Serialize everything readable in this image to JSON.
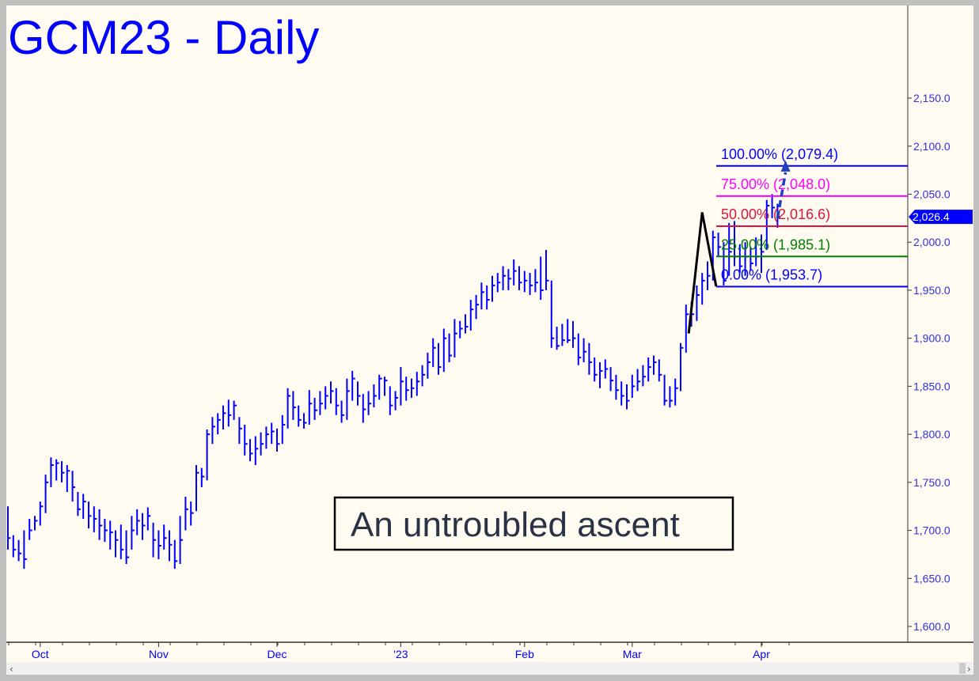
{
  "chart_data": {
    "type": "ohlc",
    "title": "GCM23 - Daily",
    "annotation": "An untroubled ascent",
    "ylim": [
      1580,
      2210
    ],
    "yticks": [
      "1,600.0",
      "1,650.0",
      "1,700.0",
      "1,750.0",
      "1,800.0",
      "1,850.0",
      "1,900.0",
      "1,950.0",
      "2,000.0",
      "2,050.0",
      "2,100.0",
      "2,150.0"
    ],
    "ytick_values": [
      1600,
      1650,
      1700,
      1750,
      1800,
      1850,
      1900,
      1950,
      2000,
      2050,
      2100,
      2150
    ],
    "xticks": [
      {
        "label": "Oct",
        "bar": 6
      },
      {
        "label": "Nov",
        "bar": 28
      },
      {
        "label": "Dec",
        "bar": 50
      },
      {
        "label": "'23",
        "bar": 73
      },
      {
        "label": "Feb",
        "bar": 96
      },
      {
        "label": "Mar",
        "bar": 116
      },
      {
        "label": "Apr",
        "bar": 140
      }
    ],
    "grid": false,
    "bar_color": "#0000ff",
    "bars_hlc": [
      [
        1725,
        1680,
        1692
      ],
      [
        1695,
        1672,
        1680
      ],
      [
        1690,
        1668,
        1676
      ],
      [
        1700,
        1660,
        1670
      ],
      [
        1712,
        1690,
        1700
      ],
      [
        1715,
        1700,
        1710
      ],
      [
        1730,
        1705,
        1725
      ],
      [
        1758,
        1718,
        1750
      ],
      [
        1776,
        1745,
        1768
      ],
      [
        1774,
        1752,
        1770
      ],
      [
        1772,
        1750,
        1760
      ],
      [
        1768,
        1740,
        1762
      ],
      [
        1762,
        1730,
        1745
      ],
      [
        1740,
        1715,
        1722
      ],
      [
        1738,
        1712,
        1730
      ],
      [
        1730,
        1702,
        1715
      ],
      [
        1725,
        1698,
        1712
      ],
      [
        1722,
        1690,
        1705
      ],
      [
        1712,
        1688,
        1700
      ],
      [
        1710,
        1680,
        1698
      ],
      [
        1700,
        1672,
        1690
      ],
      [
        1706,
        1670,
        1680
      ],
      [
        1700,
        1665,
        1672
      ],
      [
        1715,
        1680,
        1700
      ],
      [
        1722,
        1695,
        1710
      ],
      [
        1718,
        1690,
        1705
      ],
      [
        1724,
        1700,
        1715
      ],
      [
        1708,
        1672,
        1690
      ],
      [
        1700,
        1670,
        1684
      ],
      [
        1706,
        1680,
        1692
      ],
      [
        1700,
        1668,
        1685
      ],
      [
        1690,
        1660,
        1668
      ],
      [
        1715,
        1665,
        1690
      ],
      [
        1735,
        1700,
        1722
      ],
      [
        1730,
        1705,
        1718
      ],
      [
        1768,
        1720,
        1760
      ],
      [
        1765,
        1745,
        1756
      ],
      [
        1805,
        1752,
        1800
      ],
      [
        1818,
        1790,
        1808
      ],
      [
        1822,
        1800,
        1815
      ],
      [
        1830,
        1805,
        1822
      ],
      [
        1836,
        1808,
        1820
      ],
      [
        1835,
        1815,
        1830
      ],
      [
        1818,
        1790,
        1806
      ],
      [
        1810,
        1778,
        1790
      ],
      [
        1795,
        1772,
        1780
      ],
      [
        1798,
        1768,
        1785
      ],
      [
        1802,
        1778,
        1790
      ],
      [
        1808,
        1785,
        1800
      ],
      [
        1812,
        1790,
        1803
      ],
      [
        1806,
        1782,
        1790
      ],
      [
        1820,
        1790,
        1810
      ],
      [
        1848,
        1806,
        1840
      ],
      [
        1845,
        1815,
        1828
      ],
      [
        1830,
        1808,
        1815
      ],
      [
        1822,
        1806,
        1812
      ],
      [
        1846,
        1810,
        1832
      ],
      [
        1838,
        1815,
        1825
      ],
      [
        1845,
        1820,
        1832
      ],
      [
        1850,
        1826,
        1840
      ],
      [
        1855,
        1832,
        1845
      ],
      [
        1848,
        1820,
        1830
      ],
      [
        1835,
        1812,
        1820
      ],
      [
        1858,
        1815,
        1845
      ],
      [
        1866,
        1835,
        1858
      ],
      [
        1855,
        1830,
        1840
      ],
      [
        1842,
        1812,
        1826
      ],
      [
        1845,
        1820,
        1832
      ],
      [
        1852,
        1828,
        1840
      ],
      [
        1862,
        1836,
        1858
      ],
      [
        1860,
        1840,
        1856
      ],
      [
        1850,
        1820,
        1830
      ],
      [
        1845,
        1825,
        1838
      ],
      [
        1870,
        1830,
        1855
      ],
      [
        1860,
        1835,
        1846
      ],
      [
        1858,
        1838,
        1848
      ],
      [
        1865,
        1840,
        1855
      ],
      [
        1872,
        1850,
        1862
      ],
      [
        1885,
        1858,
        1875
      ],
      [
        1900,
        1870,
        1890
      ],
      [
        1895,
        1862,
        1870
      ],
      [
        1910,
        1865,
        1900
      ],
      [
        1905,
        1875,
        1882
      ],
      [
        1920,
        1880,
        1905
      ],
      [
        1918,
        1900,
        1910
      ],
      [
        1925,
        1905,
        1912
      ],
      [
        1940,
        1908,
        1930
      ],
      [
        1945,
        1920,
        1935
      ],
      [
        1958,
        1930,
        1948
      ],
      [
        1955,
        1930,
        1940
      ],
      [
        1965,
        1938,
        1955
      ],
      [
        1968,
        1948,
        1958
      ],
      [
        1975,
        1950,
        1965
      ],
      [
        1972,
        1950,
        1962
      ],
      [
        1982,
        1955,
        1970
      ],
      [
        1975,
        1950,
        1958
      ],
      [
        1970,
        1948,
        1960
      ],
      [
        1968,
        1945,
        1955
      ],
      [
        1972,
        1948,
        1958
      ],
      [
        1985,
        1940,
        1950
      ],
      [
        1992,
        1950,
        1960
      ],
      [
        1960,
        1890,
        1900
      ],
      [
        1912,
        1888,
        1892
      ],
      [
        1915,
        1892,
        1898
      ],
      [
        1920,
        1895,
        1898
      ],
      [
        1918,
        1890,
        1900
      ],
      [
        1905,
        1872,
        1880
      ],
      [
        1900,
        1875,
        1886
      ],
      [
        1895,
        1862,
        1875
      ],
      [
        1880,
        1855,
        1862
      ],
      [
        1875,
        1848,
        1866
      ],
      [
        1878,
        1858,
        1868
      ],
      [
        1870,
        1845,
        1856
      ],
      [
        1862,
        1836,
        1846
      ],
      [
        1855,
        1830,
        1840
      ],
      [
        1852,
        1826,
        1835
      ],
      [
        1862,
        1838,
        1850
      ],
      [
        1868,
        1845,
        1855
      ],
      [
        1872,
        1850,
        1860
      ],
      [
        1880,
        1855,
        1870
      ],
      [
        1882,
        1862,
        1875
      ],
      [
        1878,
        1855,
        1862
      ],
      [
        1862,
        1830,
        1835
      ],
      [
        1850,
        1828,
        1835
      ],
      [
        1858,
        1830,
        1848
      ],
      [
        1895,
        1845,
        1890
      ],
      [
        1935,
        1885,
        1925
      ],
      [
        1938,
        1912,
        1925
      ],
      [
        1955,
        1918,
        1945
      ],
      [
        1968,
        1935,
        1960
      ],
      [
        1980,
        1950,
        1965
      ],
      [
        2012,
        1960,
        2005
      ],
      [
        2010,
        1985,
        1995
      ],
      [
        2000,
        1955,
        1960
      ],
      [
        2020,
        1965,
        1990
      ],
      [
        2022,
        1975,
        1985
      ],
      [
        1998,
        1968,
        1975
      ],
      [
        2000,
        1965,
        1985
      ],
      [
        1995,
        1970,
        1978
      ],
      [
        2005,
        1975,
        1985
      ],
      [
        2008,
        1968,
        1990
      ],
      [
        2044,
        1992,
        2038
      ],
      [
        2050,
        2025,
        2036
      ],
      [
        2040,
        2015,
        2026.4
      ]
    ],
    "pattern_points": [
      [
        126.5,
        1905
      ],
      [
        129,
        2031
      ],
      [
        131.6,
        1954
      ]
    ],
    "fib_levels": [
      {
        "label": "100.00% (2,079.4)",
        "value": 2079.4,
        "color": "#0000ff"
      },
      {
        "label": "75.00% (2,048.0)",
        "value": 2048.0,
        "color": "#ff00ff"
      },
      {
        "label": "50.00% (2,016.6)",
        "value": 2016.6,
        "color": "#dc143c"
      },
      {
        "label": "25.00% (1,985.1)",
        "value": 1985.1,
        "color": "#008000"
      },
      {
        "label": "0.00% (1,953.7)",
        "value": 1953.7,
        "color": "#0000ff"
      }
    ],
    "target_arrow": {
      "from": [
        143,
        2025
      ],
      "to": [
        144.5,
        2081
      ],
      "color": "#1e3fbf"
    },
    "last_price": {
      "label": "2,026.4",
      "value": 2026.4,
      "color": "#0000ff"
    }
  }
}
